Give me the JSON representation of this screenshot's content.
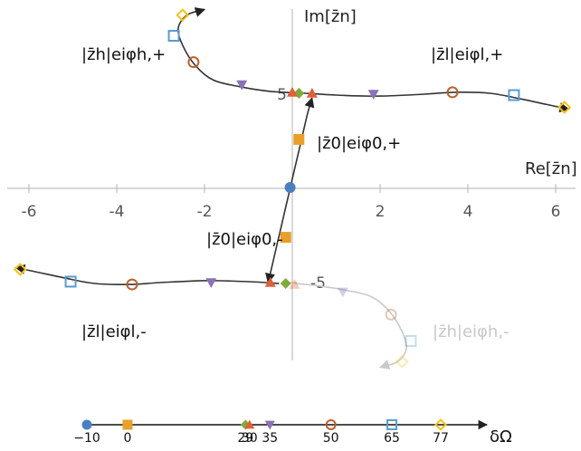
{
  "chart_data": {
    "type": "scatter",
    "title": "",
    "xlabel": "Re[z̄n]",
    "ylabel": "Im[z̄n]",
    "xlim": [
      -6.5,
      6.5
    ],
    "ylim": [
      -10,
      10
    ],
    "x_ticks": [
      "-6",
      "-4",
      "-2",
      "2",
      "4",
      "6"
    ],
    "x_tick_values": [
      -6,
      -4,
      -2,
      2,
      4,
      6
    ],
    "y_ticks": [
      "5",
      "-5"
    ],
    "y_tick_values": [
      5,
      -5
    ],
    "marker_styles": {
      "circle_filled": {
        "color": "#4a7fc1"
      },
      "square_filled": {
        "color": "#e8a02a"
      },
      "diamond_filled": {
        "color": "#7fab3a"
      },
      "triangle_up": {
        "color": "#e0603a"
      },
      "triangle_down": {
        "color": "#8a72b5"
      },
      "circle_open": {
        "color": "#b8612a"
      },
      "square_open": {
        "color": "#5a9bd0"
      },
      "diamond_open": {
        "color": "#f5c21a"
      }
    },
    "series": [
      {
        "name": "z0 upper",
        "faint": false,
        "curve": [
          [
            -0.05,
            0
          ],
          [
            0.05,
            1
          ],
          [
            0.15,
            2
          ],
          [
            0.25,
            3
          ],
          [
            0.35,
            4
          ],
          [
            0.45,
            4.8
          ]
        ],
        "points": [
          {
            "x": -0.05,
            "y": 0.05,
            "marker": "circle_filled"
          },
          {
            "x": 0.15,
            "y": 2.6,
            "marker": "square_filled"
          }
        ]
      },
      {
        "name": "z0 lower",
        "faint": false,
        "curve": [
          [
            -0.05,
            0
          ],
          [
            -0.15,
            -1
          ],
          [
            -0.25,
            -2
          ],
          [
            -0.35,
            -3
          ],
          [
            -0.45,
            -4
          ],
          [
            -0.55,
            -5
          ]
        ],
        "points": [
          {
            "x": -0.15,
            "y": -2.6,
            "marker": "square_filled"
          }
        ]
      },
      {
        "name": "zl upper",
        "faint": false,
        "curve": [
          [
            0.3,
            5.05
          ],
          [
            1.0,
            4.95
          ],
          [
            2.0,
            4.9
          ],
          [
            3.0,
            5.0
          ],
          [
            3.7,
            5.1
          ],
          [
            4.5,
            5.05
          ],
          [
            5.2,
            4.75
          ],
          [
            5.8,
            4.45
          ],
          [
            6.3,
            4.2
          ]
        ],
        "points": [
          {
            "x": 0.15,
            "y": 5.05,
            "marker": "diamond_filled"
          },
          {
            "x": 0.0,
            "y": 5.1,
            "marker": "triangle_up"
          },
          {
            "x": 0.45,
            "y": 5.05,
            "marker": "triangle_up"
          },
          {
            "x": 1.85,
            "y": 5.0,
            "marker": "triangle_down"
          },
          {
            "x": 3.65,
            "y": 5.1,
            "marker": "circle_open"
          },
          {
            "x": 5.05,
            "y": 4.95,
            "marker": "square_open"
          },
          {
            "x": 6.2,
            "y": 4.3,
            "marker": "diamond_open"
          }
        ]
      },
      {
        "name": "zh upper",
        "faint": false,
        "curve": [
          [
            0.3,
            5.05
          ],
          [
            -0.5,
            5.15
          ],
          [
            -1.2,
            5.4
          ],
          [
            -1.8,
            5.75
          ],
          [
            -2.2,
            6.5
          ],
          [
            -2.5,
            7.6
          ],
          [
            -2.6,
            8.5
          ],
          [
            -2.4,
            9.2
          ],
          [
            -2.0,
            9.5
          ]
        ],
        "points": [
          {
            "x": -1.15,
            "y": 5.5,
            "marker": "triangle_down"
          },
          {
            "x": -2.25,
            "y": 6.7,
            "marker": "circle_open"
          },
          {
            "x": -2.7,
            "y": 8.1,
            "marker": "square_open"
          },
          {
            "x": -2.5,
            "y": 9.2,
            "marker": "diamond_open"
          }
        ]
      },
      {
        "name": "zl lower",
        "faint": false,
        "curve": [
          [
            -0.3,
            -5.05
          ],
          [
            -1.0,
            -4.95
          ],
          [
            -2.0,
            -4.9
          ],
          [
            -3.0,
            -5.0
          ],
          [
            -3.7,
            -5.1
          ],
          [
            -4.5,
            -5.05
          ],
          [
            -5.2,
            -4.75
          ],
          [
            -5.8,
            -4.45
          ],
          [
            -6.3,
            -4.2
          ]
        ],
        "points": [
          {
            "x": -0.15,
            "y": -5.05,
            "marker": "diamond_filled"
          },
          {
            "x": -0.5,
            "y": -5.0,
            "marker": "triangle_up"
          },
          {
            "x": -1.85,
            "y": -5.0,
            "marker": "triangle_down"
          },
          {
            "x": -3.65,
            "y": -5.1,
            "marker": "circle_open"
          },
          {
            "x": -5.05,
            "y": -4.95,
            "marker": "square_open"
          },
          {
            "x": -6.2,
            "y": -4.3,
            "marker": "diamond_open"
          }
        ]
      },
      {
        "name": "zh lower",
        "faint": true,
        "curve": [
          [
            0.05,
            -5.05
          ],
          [
            0.5,
            -5.15
          ],
          [
            1.2,
            -5.4
          ],
          [
            1.8,
            -5.75
          ],
          [
            2.2,
            -6.5
          ],
          [
            2.5,
            -7.6
          ],
          [
            2.6,
            -8.5
          ],
          [
            2.4,
            -9.2
          ],
          [
            2.0,
            -9.5
          ]
        ],
        "points": [
          {
            "x": 0.05,
            "y": -5.1,
            "marker": "triangle_up"
          },
          {
            "x": 1.15,
            "y": -5.5,
            "marker": "triangle_down"
          },
          {
            "x": 2.25,
            "y": -6.7,
            "marker": "circle_open"
          },
          {
            "x": 2.7,
            "y": -8.1,
            "marker": "square_open"
          },
          {
            "x": 2.5,
            "y": -9.2,
            "marker": "diamond_open"
          }
        ]
      }
    ],
    "annotations": {
      "zh_plus": "|z̄h|eiφh,+",
      "zl_plus": "|z̄l|eiφl,+",
      "z0_plus": "|z̄0|eiφ0,+",
      "z0_minus": "|z̄0|eiφ0,-",
      "zl_minus": "|z̄l|eiφl,-",
      "zh_minus": "|z̄h|eiφh,-"
    },
    "delta_omega_axis": {
      "label": "δΩ",
      "ticks": [
        {
          "label": "−10",
          "value": -10,
          "marker": "circle_filled"
        },
        {
          "label": "0",
          "value": 0,
          "marker": "square_filled"
        },
        {
          "label": "29",
          "value": 29,
          "marker": "diamond_filled"
        },
        {
          "label": "30",
          "value": 30,
          "marker": "triangle_up"
        },
        {
          "label": "35",
          "value": 35,
          "marker": "triangle_down"
        },
        {
          "label": "50",
          "value": 50,
          "marker": "circle_open"
        },
        {
          "label": "65",
          "value": 65,
          "marker": "square_open"
        },
        {
          "label": "77",
          "value": 77,
          "marker": "diamond_open"
        }
      ]
    }
  }
}
